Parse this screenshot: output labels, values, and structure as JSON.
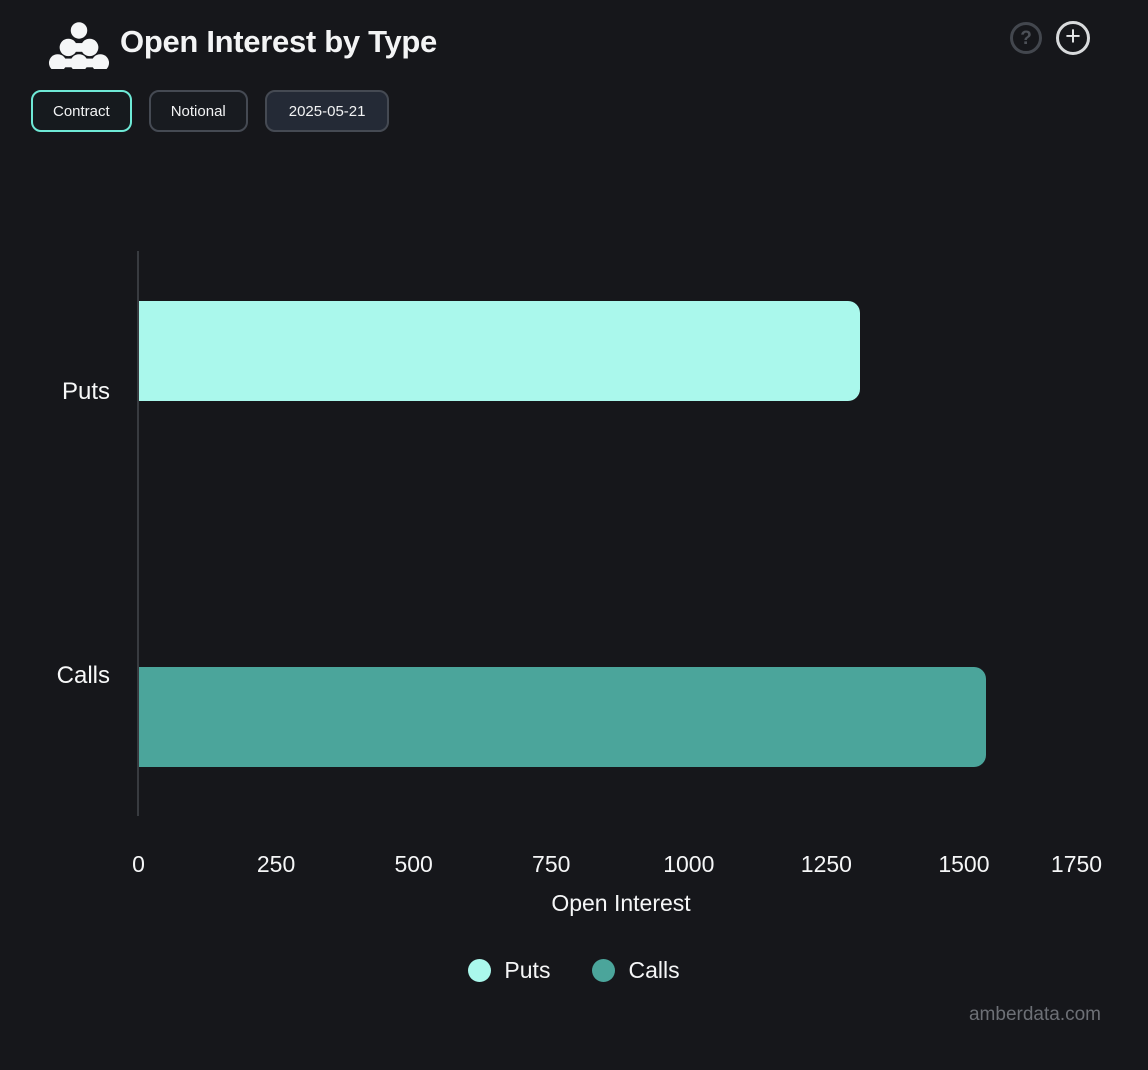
{
  "header": {
    "title": "Open Interest by Type",
    "help_icon": "?",
    "add_icon": "+"
  },
  "toolbar": {
    "buttons": [
      {
        "label": "Contract",
        "active": true,
        "variant": "default"
      },
      {
        "label": "Notional",
        "active": false,
        "variant": "default"
      },
      {
        "label": "2025-05-21",
        "active": false,
        "variant": "date"
      }
    ]
  },
  "chart_data": {
    "type": "bar",
    "orientation": "horizontal",
    "title": "Open Interest by Type",
    "categories": [
      "Puts",
      "Calls"
    ],
    "values": [
      1310,
      1540
    ],
    "colors": [
      "#aaf8ec",
      "#4ba59b"
    ],
    "xlabel": "Open Interest",
    "ylabel": "",
    "xticks": [
      0,
      250,
      500,
      750,
      1000,
      1250,
      1500,
      1750
    ],
    "xlim": [
      0,
      1780
    ],
    "grid": false,
    "legend_position": "bottom",
    "legend": [
      {
        "label": "Puts",
        "color": "#aaf8ec"
      },
      {
        "label": "Calls",
        "color": "#4ba59b"
      }
    ]
  },
  "footer": {
    "watermark": "amberdata.com"
  },
  "colors": {
    "background": "#16171b",
    "accent": "#6ee9d6",
    "axis_line": "#383b40",
    "text": "#f5f6f7"
  }
}
